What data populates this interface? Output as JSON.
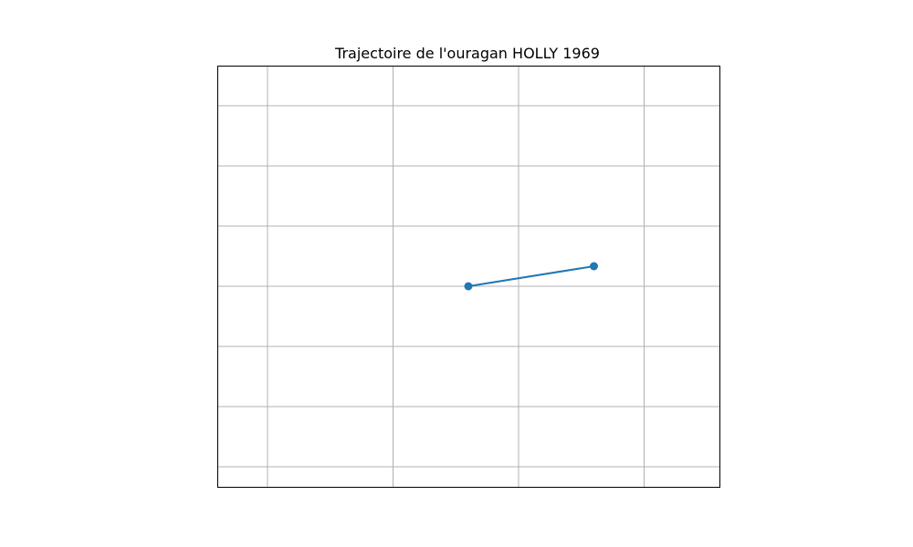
{
  "chart_data": {
    "type": "line",
    "title": "Trajectoire de l'ouragan HOLLY 1969",
    "xlabel": "",
    "ylabel": "",
    "xlim": [
      0,
      10
    ],
    "ylim": [
      0,
      10.5
    ],
    "x_gridlines": [
      1,
      3.5,
      6,
      8.5,
      11
    ],
    "y_gridlines": [
      0.5,
      2,
      3.5,
      5,
      6.5,
      8,
      9.5
    ],
    "grid": true,
    "series": [
      {
        "x": [
          5,
          7.5
        ],
        "y": [
          5,
          5.5
        ],
        "color": "#1f77b4",
        "marker": "circle"
      }
    ]
  }
}
